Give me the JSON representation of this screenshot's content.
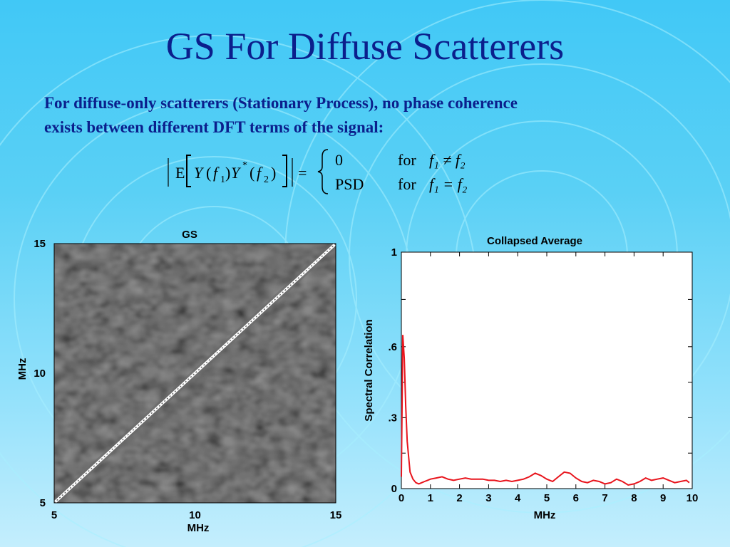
{
  "slide": {
    "title": "GS For Diffuse Scatterers",
    "description_line1": "For diffuse-only scatterers (Stationary Process), no phase coherence",
    "description_line2": "exists between different DFT terms of the signal:"
  },
  "equation": {
    "lhs_E": "E",
    "lhs_Y1": "Y",
    "lhs_f1": "f",
    "lhs_sub1": "1",
    "lhs_Y2": "Y",
    "lhs_star": "*",
    "lhs_f2": "f",
    "lhs_sub2": "2",
    "equals": "=",
    "case1_value": "0",
    "case1_for": "for",
    "case1_cond": "f₁ ≠ f₂",
    "case2_value": "PSD",
    "case2_for": "for",
    "case2_cond": "f₁ = f₂"
  },
  "chart_data": [
    {
      "type": "heatmap",
      "title": "GS",
      "xlabel": "MHz",
      "ylabel": "MHz",
      "xlim": [
        5,
        15
      ],
      "ylim": [
        5,
        15
      ],
      "xticks": [
        "5",
        "10",
        "15"
      ],
      "yticks": [
        "5",
        "10",
        "15"
      ],
      "colormap": "gray",
      "diagonal": "bright line from (5,5) to (15,15)"
    },
    {
      "type": "line",
      "title": "Collapsed Average",
      "xlabel": "MHz",
      "ylabel": "Spectral Correlation",
      "xlim": [
        0,
        10
      ],
      "ylim": [
        0,
        1
      ],
      "xticks": [
        "0",
        "1",
        "2",
        "3",
        "4",
        "5",
        "6",
        "7",
        "8",
        "9",
        "10"
      ],
      "yticks": [
        "0",
        ".3",
        ".6",
        "1"
      ],
      "ytick_values": [
        0,
        0.3,
        0.6,
        1
      ],
      "color": "#e8141c",
      "series": [
        {
          "x": [
            0,
            0.05,
            0.1,
            0.15,
            0.2,
            0.3,
            0.4,
            0.5,
            0.6,
            0.7,
            0.8,
            0.9,
            1.0,
            1.2,
            1.4,
            1.6,
            1.8,
            2.0,
            2.2,
            2.4,
            2.6,
            2.8,
            3.0,
            3.2,
            3.4,
            3.6,
            3.8,
            4.0,
            4.2,
            4.4,
            4.6,
            4.8,
            5.0,
            5.2,
            5.4,
            5.6,
            5.8,
            6.0,
            6.2,
            6.4,
            6.6,
            6.8,
            7.0,
            7.2,
            7.4,
            7.6,
            7.8,
            8.0,
            8.2,
            8.4,
            8.6,
            8.8,
            9.0,
            9.2,
            9.4,
            9.6,
            9.8,
            9.9
          ],
          "y": [
            0.05,
            0.65,
            0.55,
            0.35,
            0.2,
            0.07,
            0.04,
            0.025,
            0.02,
            0.025,
            0.03,
            0.035,
            0.04,
            0.045,
            0.05,
            0.04,
            0.035,
            0.04,
            0.045,
            0.04,
            0.04,
            0.04,
            0.035,
            0.035,
            0.03,
            0.035,
            0.03,
            0.035,
            0.04,
            0.05,
            0.065,
            0.055,
            0.04,
            0.03,
            0.05,
            0.07,
            0.065,
            0.045,
            0.03,
            0.025,
            0.035,
            0.03,
            0.02,
            0.025,
            0.04,
            0.03,
            0.015,
            0.02,
            0.03,
            0.045,
            0.035,
            0.04,
            0.045,
            0.035,
            0.025,
            0.03,
            0.035,
            0.025
          ]
        }
      ]
    }
  ],
  "colors": {
    "title": "#0b1f8c",
    "curve": "#e8141c"
  }
}
